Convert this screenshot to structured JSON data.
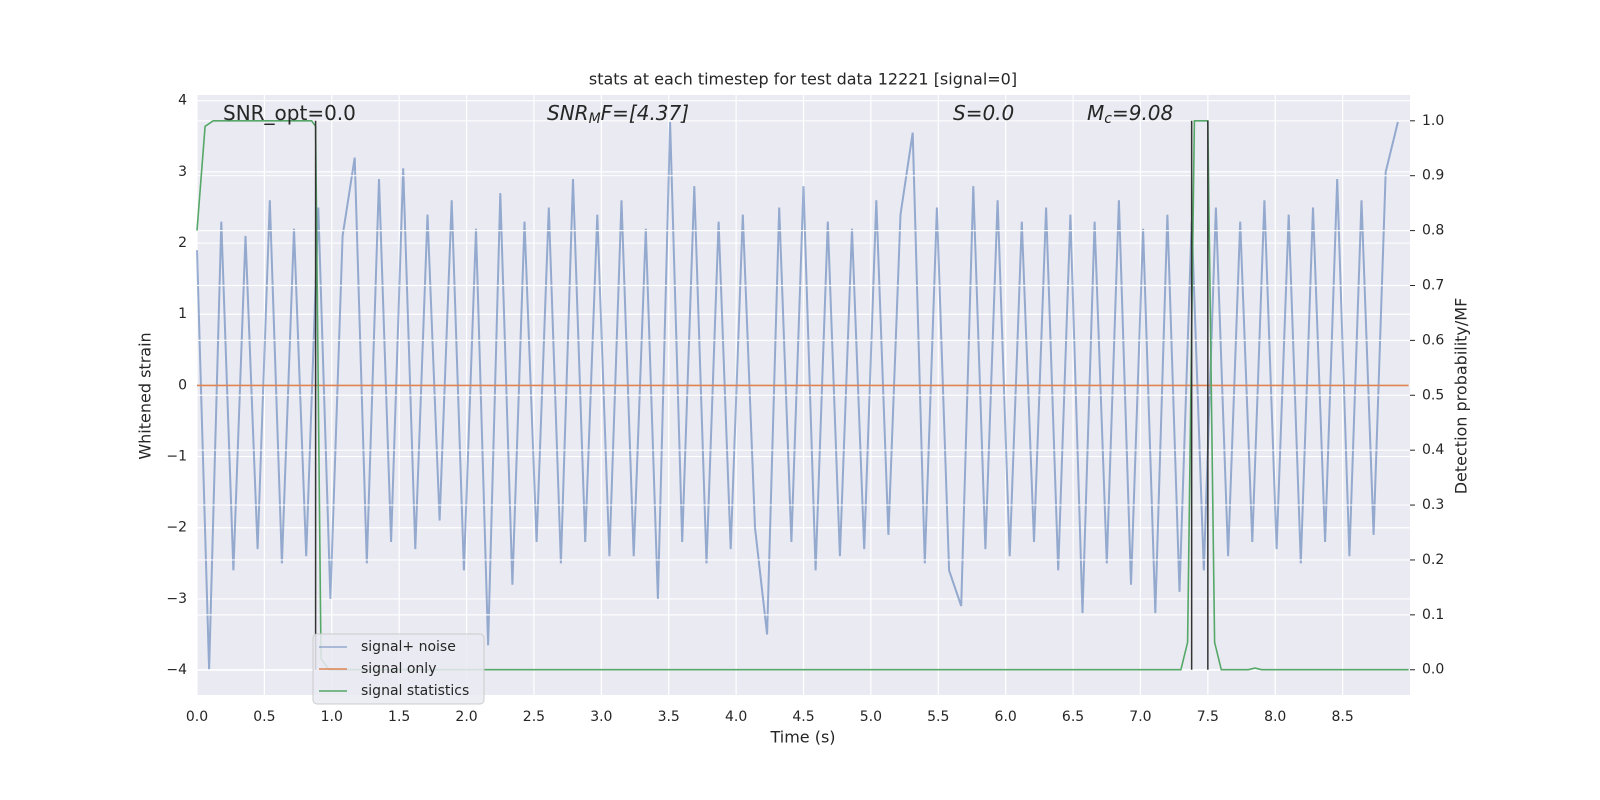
{
  "chart_data": {
    "type": "line",
    "title": "stats at each timestep for test data 12221 [signal=0]",
    "xlabel": "Time (s)",
    "ylabel": "Whitened strain",
    "y2label": "Detection probability/MF",
    "xlim": [
      0,
      9.0
    ],
    "ylim": [
      -4.35,
      4.08
    ],
    "y2lim": [
      -0.046,
      1.047
    ],
    "xticks": [
      {
        "value": 0,
        "label": "0.0"
      },
      0.5,
      {
        "value": 1,
        "label": "1.0"
      },
      1.5,
      {
        "value": 2,
        "label": "2.0"
      },
      2.5,
      {
        "value": 3,
        "label": "3.0"
      },
      3.5,
      {
        "value": 4,
        "label": "4.0"
      },
      4.5,
      {
        "value": 5,
        "label": "5.0"
      },
      5.5,
      {
        "value": 6,
        "label": "6.0"
      },
      6.5,
      {
        "value": 7,
        "label": "7.0"
      },
      7.5,
      {
        "value": 8,
        "label": "8.0"
      },
      8.5
    ],
    "yticks": [
      {
        "value": -4,
        "label": "−4"
      },
      {
        "value": -3,
        "label": "−3"
      },
      {
        "value": -2,
        "label": "−2"
      },
      {
        "value": -1,
        "label": "−1"
      },
      0,
      1,
      2,
      3,
      4
    ],
    "y2ticks": [
      {
        "value": 0,
        "label": "0.0"
      },
      0.1,
      0.2,
      0.3,
      0.4,
      0.5,
      0.6,
      0.7,
      0.8,
      0.9,
      {
        "value": 1,
        "label": "1.0"
      }
    ],
    "grid": true,
    "background": "#eaeaf2",
    "legend": "lower left",
    "series": [
      {
        "name": "signal+ noise",
        "color": "#4c72b0",
        "opacity": 0.55,
        "x": [
          0,
          0.09,
          0.18,
          0.27,
          0.36,
          0.45,
          0.54,
          0.63,
          0.72,
          0.81,
          0.9,
          0.99,
          1.08,
          1.17,
          1.26,
          1.35,
          1.44,
          1.53,
          1.62,
          1.71,
          1.8,
          1.89,
          1.98,
          2.07,
          2.16,
          2.25,
          2.34,
          2.43,
          2.52,
          2.61,
          2.7,
          2.79,
          2.88,
          2.97,
          3.06,
          3.15,
          3.24,
          3.33,
          3.42,
          3.51,
          3.6,
          3.69,
          3.78,
          3.87,
          3.96,
          4.05,
          4.14,
          4.23,
          4.32,
          4.41,
          4.5,
          4.59,
          4.68,
          4.77,
          4.86,
          4.95,
          5.04,
          5.13,
          5.22,
          5.31,
          5.4,
          5.49,
          5.58,
          5.67,
          5.76,
          5.85,
          5.94,
          6.03,
          6.12,
          6.21,
          6.3,
          6.39,
          6.48,
          6.57,
          6.66,
          6.75,
          6.84,
          6.93,
          7.02,
          7.11,
          7.2,
          7.29,
          7.38,
          7.47,
          7.56,
          7.65,
          7.74,
          7.83,
          7.92,
          8.01,
          8.1,
          8.19,
          8.28,
          8.37,
          8.46,
          8.55,
          8.64,
          8.73,
          8.82,
          8.91
        ],
        "values": [
          1.9,
          -4.0,
          2.3,
          -2.6,
          2.1,
          -2.3,
          2.6,
          -2.5,
          2.2,
          -2.4,
          2.5,
          -3.0,
          2.1,
          3.2,
          -2.5,
          2.9,
          -2.2,
          3.05,
          -2.3,
          2.4,
          -1.9,
          2.6,
          -2.6,
          2.2,
          -3.65,
          2.7,
          -2.8,
          2.3,
          -2.2,
          2.5,
          -2.5,
          2.9,
          -2.2,
          2.4,
          -2.4,
          2.6,
          -2.4,
          2.2,
          -3.0,
          3.7,
          -2.2,
          2.8,
          -2.5,
          2.3,
          -2.3,
          2.4,
          -2.0,
          -3.5,
          2.5,
          -2.2,
          2.8,
          -2.6,
          2.3,
          -2.4,
          2.2,
          -2.3,
          2.6,
          -2.1,
          2.4,
          3.55,
          -2.5,
          2.5,
          -2.6,
          -3.1,
          2.8,
          -2.3,
          2.6,
          -2.4,
          2.3,
          -2.2,
          2.5,
          -2.6,
          2.4,
          -3.2,
          2.3,
          -2.5,
          2.6,
          -2.8,
          2.2,
          -3.2,
          2.4,
          -2.9,
          2.3,
          -2.6,
          2.5,
          -2.4,
          2.3,
          -2.2,
          2.6,
          -2.3,
          2.4,
          -2.5,
          2.5,
          -2.2,
          2.9,
          -2.4,
          2.6,
          -2.1,
          3.0,
          3.7
        ]
      },
      {
        "name": "signal only",
        "color": "#dd8452",
        "opacity": 1,
        "x": [
          0,
          8.99
        ],
        "values": [
          0,
          0
        ]
      },
      {
        "name": "signal statistics",
        "color": "#55a868",
        "opacity": 1,
        "axis": "y2",
        "x": [
          0,
          0.06,
          0.12,
          0.85,
          0.88,
          0.92,
          0.98,
          7.3,
          7.35,
          7.4,
          7.45,
          7.5,
          7.55,
          7.6,
          7.8,
          7.85,
          7.9,
          8.99
        ],
        "values": [
          0.8,
          0.99,
          1.0,
          1.0,
          0.99,
          0.02,
          0.0,
          0.0,
          0.05,
          1.0,
          1.0,
          1.0,
          0.05,
          0.0,
          0.0,
          0.003,
          0.0,
          0.0
        ]
      }
    ],
    "vlines": {
      "x": [
        0.88,
        7.38,
        7.5
      ],
      "ymin": 0,
      "ymax": 1,
      "color": "#333333",
      "axis": "y2"
    },
    "annotations": [
      {
        "text": "SNR_opt=0.0"
      },
      {
        "text": "SNR",
        "sub": "M",
        "tail": "F=[4.37]",
        "italic": true
      },
      {
        "text": "S",
        "tail": "=0.0",
        "italic": true
      },
      {
        "text": "M",
        "sub": "c",
        "tail": "=9.08",
        "italic": true
      }
    ]
  }
}
